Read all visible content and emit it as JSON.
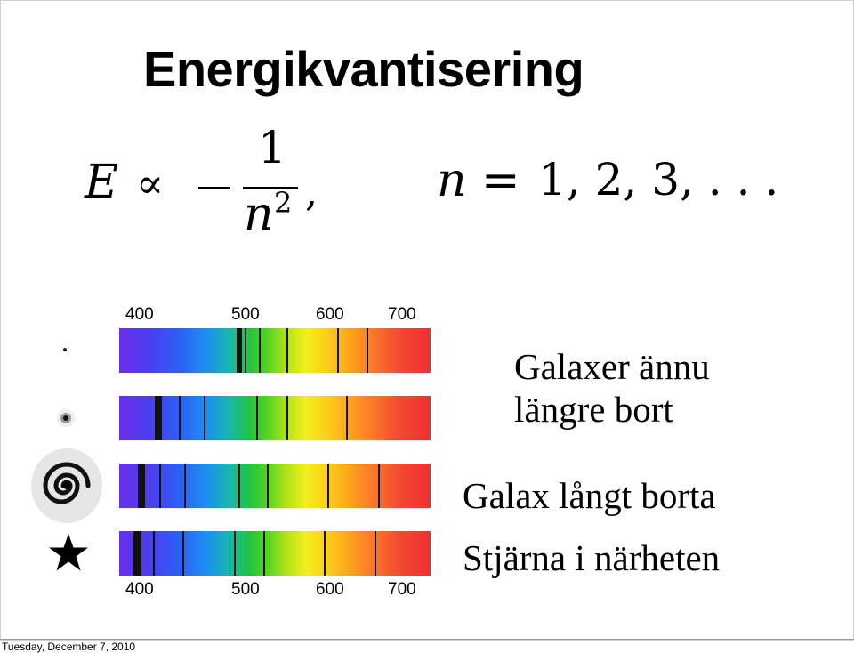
{
  "slide": {
    "title": "Energikvantisering",
    "formula": {
      "lhs": "E",
      "relation": "∝",
      "numerator": "1",
      "denominator_var": "n",
      "denominator_exp": "2",
      "comma": ",",
      "rhs_var": "n",
      "rhs_eq": "=",
      "rhs_values": "1, 2, 3, . . ."
    },
    "axis_top": [
      "400",
      "500",
      "600",
      "700"
    ],
    "axis_bottom": [
      "400",
      "500",
      "600",
      "700"
    ],
    "labels": {
      "far_galaxies_line1": "Galaxer ännu",
      "far_galaxies_line2": "längre bort",
      "far_galaxy": "Galax långt borta",
      "near_star": "Stjärna i närheten"
    },
    "icons": [
      "distant-galaxy-dot-icon",
      "small-galaxy-icon",
      "spiral-galaxy-icon",
      "star-icon"
    ],
    "footer_date": "Tuesday, December 7, 2010"
  }
}
